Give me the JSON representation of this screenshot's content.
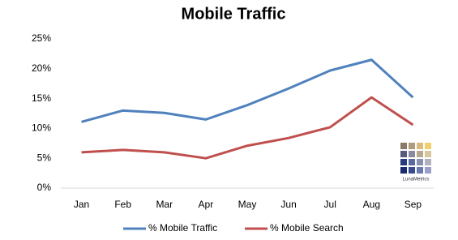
{
  "chart_data": {
    "type": "line",
    "title": "Mobile Traffic",
    "categories": [
      "Jan",
      "Feb",
      "Mar",
      "Apr",
      "May",
      "Jun",
      "Jul",
      "Aug",
      "Sep"
    ],
    "series": [
      {
        "name": "% Mobile Traffic",
        "color": "#4f81bd",
        "values": [
          11.1,
          13.0,
          12.6,
          11.5,
          13.9,
          16.7,
          19.7,
          21.5,
          15.2
        ]
      },
      {
        "name": "% Mobile Search",
        "color": "#c0504d",
        "values": [
          6.0,
          6.4,
          6.0,
          5.0,
          7.1,
          8.4,
          10.2,
          15.2,
          10.6
        ]
      }
    ],
    "ylim": [
      0,
      25
    ],
    "yticks": [
      {
        "value": 0,
        "label": "0%"
      },
      {
        "value": 5,
        "label": "5%"
      },
      {
        "value": 10,
        "label": "10%"
      },
      {
        "value": 15,
        "label": "15%"
      },
      {
        "value": 20,
        "label": "20%"
      },
      {
        "value": 25,
        "label": "25%"
      }
    ],
    "grid": false,
    "legend": "bottom",
    "watermark": "LunaMetrics"
  }
}
